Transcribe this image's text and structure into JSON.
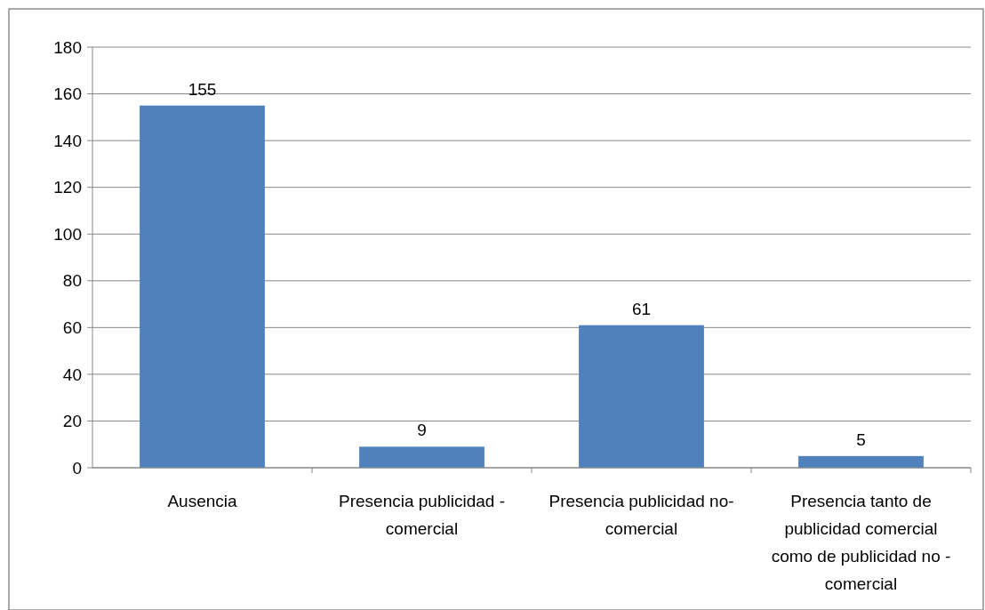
{
  "chart_data": {
    "type": "bar",
    "categories": [
      "Ausencia",
      "Presencia publicidad - comercial",
      "Presencia publicidad no- comercial",
      "Presencia tanto de publicidad comercial como de publicidad no - comercial"
    ],
    "values": [
      155,
      9,
      61,
      5
    ],
    "color": "#4f81bd",
    "data_labels": true,
    "ylim": [
      0,
      180
    ],
    "yticks": [
      0,
      20,
      40,
      60,
      80,
      100,
      120,
      140,
      160,
      180
    ],
    "grid": "y"
  }
}
